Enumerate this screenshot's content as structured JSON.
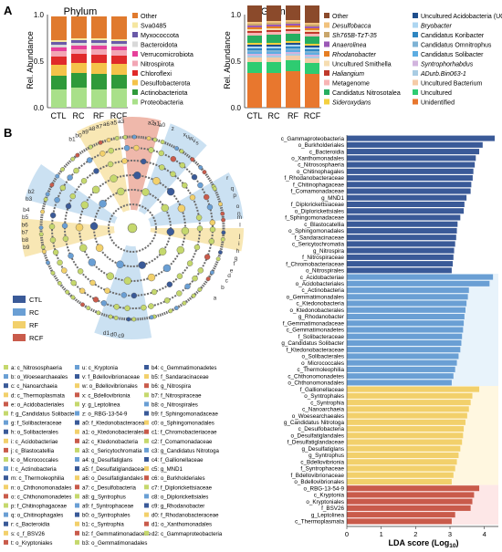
{
  "panel_labels": {
    "a": "A",
    "b": "B"
  },
  "phylum": {
    "title": "Phylum",
    "ylabel": "Rel. Abundance",
    "yticks": [
      "0.0",
      "0.5",
      "1.0"
    ],
    "categories": [
      "CTL",
      "RC",
      "RF",
      "RCF"
    ],
    "legend": [
      {
        "name": "Other",
        "color": "#e07a2e"
      },
      {
        "name": "Sva0485",
        "color": "#f5e6a0"
      },
      {
        "name": "Myxococcota",
        "color": "#6a5aa8"
      },
      {
        "name": "Bacteroidota",
        "color": "#d9d9d9"
      },
      {
        "name": "Verrucomicrobiota",
        "color": "#e6409a"
      },
      {
        "name": "Nitrospirota",
        "color": "#f2a6b4"
      },
      {
        "name": "Chloroflexi",
        "color": "#e02a2a"
      },
      {
        "name": "Desulfobacterota",
        "color": "#f4c34a"
      },
      {
        "name": "Actinobacteriota",
        "color": "#2f9a3a"
      },
      {
        "name": "Proteobacteria",
        "color": "#a9e08a"
      }
    ]
  },
  "genus": {
    "title": "Geuns",
    "ylabel": "Rel. Abundance",
    "yticks": [
      "0.0",
      "0.5",
      "1.0"
    ],
    "categories": [
      "CTL",
      "RC",
      "RF",
      "RCF"
    ],
    "legend_left": [
      {
        "name": "Other",
        "color": "#8b4a2b",
        "italic": false
      },
      {
        "name": "Desulfobacca",
        "color": "#f1c27d",
        "italic": true
      },
      {
        "name": "Sh765B-TzT-35",
        "color": "#c9a66b",
        "italic": true
      },
      {
        "name": "Anaerolinea",
        "color": "#9b59b6",
        "italic": true
      },
      {
        "name": "Rhodanobacter",
        "color": "#e67e22",
        "italic": true
      },
      {
        "name": "Uncultured Smithella",
        "color": "#f6ddb0",
        "italic": false
      },
      {
        "name": "Haliangium",
        "color": "#c0392b",
        "italic": true
      },
      {
        "name": "Metagenome",
        "color": "#f8b4b4",
        "italic": false
      },
      {
        "name": "Candidatus Nitrosotalea",
        "color": "#27ae60",
        "italic": false
      },
      {
        "name": "Sideroxydans",
        "color": "#f4d03f",
        "italic": true
      }
    ],
    "legend_right": [
      {
        "name": "Uncultured Acidobacteria (UG)",
        "color": "#1f4e8c",
        "italic": false
      },
      {
        "name": "Bryobacter",
        "color": "#aed6f1",
        "italic": true
      },
      {
        "name": "Candidatus Koribacter",
        "color": "#2e86c1",
        "italic": false
      },
      {
        "name": "Candidatus Omnitrophus",
        "color": "#7fb3d5",
        "italic": false
      },
      {
        "name": "Candidatus Solibacter",
        "color": "#5dade2",
        "italic": false
      },
      {
        "name": "Syntrophorhabdus",
        "color": "#d2b4de",
        "italic": true
      },
      {
        "name": "ADurb.Bin063-1",
        "color": "#a9cce3",
        "italic": true
      },
      {
        "name": "Uncultured Bacterium",
        "color": "#f5cba7",
        "italic": false
      },
      {
        "name": "Uncultured",
        "color": "#2ecc71",
        "italic": false
      },
      {
        "name": "Unidentified",
        "color": "#e8772e",
        "italic": false
      }
    ]
  },
  "lda": {
    "xlabel": "LDA score (Log",
    "xlabel_sub": "10",
    "xlabel_end": ")",
    "xticks": [
      "0",
      "1",
      "2",
      "3",
      "4"
    ]
  },
  "cladogram_legend": [
    {
      "name": "CTL",
      "color": "#3a5a98"
    },
    {
      "name": "RC",
      "color": "#6a9fd4"
    },
    {
      "name": "RF",
      "color": "#f2d06b"
    },
    {
      "name": "RCF",
      "color": "#c95b4b"
    }
  ],
  "clade_keys": {
    "col1": [
      "a: c_Nitrososphaeria",
      "b: o_Woesearchaeales",
      "c: c_Nanoarchaeia",
      "d: c_Thermoplasmata",
      "e: o_Acidobacteriales",
      "f: g_Candidatus Solibacter",
      "g: f_Solibacteraceae",
      "h: o_Solibacterales",
      "i: c_Acidobacteriae",
      "j: c_Blastocatellia",
      "k: o_Micrococcales",
      "l: c_Actinobacteria",
      "m: c_Thermoleophilia",
      "n: o_Chthonomonadales",
      "o: c_Chthonomonadetes",
      "p: f_Chitinophagaceae",
      "q: o_Chitinophagales",
      "r: c_Bacteroidia",
      "s: c_f_BSV26",
      "t: o_Kryptoniales"
    ],
    "col2": [
      "u: c_Kryptonia",
      "v: f_Bdellovibrionaceae",
      "w: o_Bdellovibrionales",
      "x: c_Bdellovibrionia",
      "y: g_Leptolinea",
      "z: o_RBG-13-54-9",
      "a0: f_Ktedonobacteraceae",
      "a1: o_Ktedonobacterales",
      "a2: c_Ktedonobacteria",
      "a3: c_Sericytochromatia",
      "a4: g_Desulfatiglans",
      "a5: f_Desulfatiglandaceae",
      "a6: o_Desulfatiglandales",
      "a7: c_Desulfobacteria",
      "a8: g_Syntrophus",
      "a9: f_Syntrophaceae",
      "b0: o_Syntrophales",
      "b1: c_Syntrophia",
      "b2: f_Gemmatimonadaceae",
      "b3: o_Gemmatimonadales"
    ],
    "col3": [
      "b4: c_Gemmatimonadetes",
      "b5: f_Sandaracinaceae",
      "b6: g_Nitrospira",
      "b7: f_Nitrospiraceae",
      "b8: o_Nitrospirales",
      "b9: f_Sphingomonadaceae",
      "c0: o_Sphingomonadales",
      "c1: f_Chromobacteriaceae",
      "c2: f_Comamonadaceae",
      "c3: g_Candidatus Nitrotoga",
      "c4: f_Gallionellaceae",
      "c5: g_MND1",
      "c6: o_Burkholderiales",
      "c7: f_Diplorickettsiaceae",
      "c8: o_Diplorickettsiales",
      "c9: g_Rhodanobacter",
      "d0: f_Rhodanobacteraceae",
      "d1: o_Xanthomonadales",
      "d2: c_Gammaproteobacteria"
    ]
  },
  "chart_data": [
    {
      "type": "bar",
      "title": "Phylum",
      "ylabel": "Rel. Abundance",
      "ylim": [
        0,
        1
      ],
      "categories": [
        "CTL",
        "RC",
        "RF",
        "RCF"
      ],
      "series": [
        {
          "name": "Proteobacteria",
          "values": [
            0.2,
            0.22,
            0.2,
            0.21
          ]
        },
        {
          "name": "Actinobacteriota",
          "values": [
            0.15,
            0.16,
            0.17,
            0.15
          ]
        },
        {
          "name": "Desulfobacterota",
          "values": [
            0.12,
            0.11,
            0.12,
            0.12
          ]
        },
        {
          "name": "Chloroflexi",
          "values": [
            0.09,
            0.1,
            0.09,
            0.09
          ]
        },
        {
          "name": "Nitrospirota",
          "values": [
            0.06,
            0.05,
            0.06,
            0.06
          ]
        },
        {
          "name": "Verrucomicrobiota",
          "values": [
            0.04,
            0.04,
            0.04,
            0.04
          ]
        },
        {
          "name": "Bacteroidota",
          "values": [
            0.03,
            0.03,
            0.03,
            0.03
          ]
        },
        {
          "name": "Myxococcota",
          "values": [
            0.03,
            0.03,
            0.03,
            0.03
          ]
        },
        {
          "name": "Sva0485",
          "values": [
            0.02,
            0.02,
            0.02,
            0.02
          ]
        },
        {
          "name": "Other",
          "values": [
            0.26,
            0.24,
            0.24,
            0.25
          ]
        }
      ]
    },
    {
      "type": "bar",
      "title": "Geuns",
      "ylabel": "Rel. Abundance",
      "ylim": [
        0,
        1
      ],
      "categories": [
        "CTL",
        "RC",
        "RF",
        "RCF"
      ],
      "series": [
        {
          "name": "Unidentified",
          "values": [
            0.38,
            0.38,
            0.4,
            0.37
          ]
        },
        {
          "name": "Uncultured",
          "values": [
            0.12,
            0.12,
            0.12,
            0.12
          ]
        },
        {
          "name": "Uncultured Bacterium",
          "values": [
            0.05,
            0.05,
            0.05,
            0.05
          ]
        },
        {
          "name": "ADurb.Bin063-1",
          "values": [
            0.02,
            0.02,
            0.02,
            0.02
          ]
        },
        {
          "name": "Syntrophorhabdus",
          "values": [
            0.02,
            0.02,
            0.02,
            0.02
          ]
        },
        {
          "name": "Candidatus Solibacter",
          "values": [
            0.02,
            0.02,
            0.02,
            0.02
          ]
        },
        {
          "name": "Candidatus Omnitrophus",
          "values": [
            0.02,
            0.02,
            0.02,
            0.02
          ]
        },
        {
          "name": "Candidatus Koribacter",
          "values": [
            0.02,
            0.02,
            0.02,
            0.02
          ]
        },
        {
          "name": "Bryobacter",
          "values": [
            0.02,
            0.02,
            0.02,
            0.02
          ]
        },
        {
          "name": "Uncultured Acidobacteria (UG)",
          "values": [
            0.02,
            0.02,
            0.02,
            0.02
          ]
        },
        {
          "name": "Sideroxydans",
          "values": [
            0.02,
            0.02,
            0.02,
            0.02
          ]
        },
        {
          "name": "Candidatus Nitrosotalea",
          "values": [
            0.08,
            0.09,
            0.08,
            0.08
          ]
        },
        {
          "name": "Metagenome",
          "values": [
            0.03,
            0.03,
            0.03,
            0.03
          ]
        },
        {
          "name": "Haliangium",
          "values": [
            0.02,
            0.02,
            0.02,
            0.02
          ]
        },
        {
          "name": "Uncultured Smithella",
          "values": [
            0.02,
            0.02,
            0.02,
            0.02
          ]
        },
        {
          "name": "Rhodanobacter",
          "values": [
            0.02,
            0.02,
            0.02,
            0.02
          ]
        },
        {
          "name": "Anaerolinea",
          "values": [
            0.02,
            0.02,
            0.02,
            0.02
          ]
        },
        {
          "name": "Sh765B-TzT-35",
          "values": [
            0.02,
            0.02,
            0.02,
            0.02
          ]
        },
        {
          "name": "Desulfobacca",
          "values": [
            0.02,
            0.02,
            0.02,
            0.02
          ]
        },
        {
          "name": "Other",
          "values": [
            0.18,
            0.17,
            0.16,
            0.19
          ]
        }
      ]
    },
    {
      "type": "bar",
      "orientation": "horizontal",
      "xlabel": "LDA score (Log10)",
      "xlim": [
        0,
        4.3
      ],
      "categories": [
        "c_Gammaproteobacteria",
        "o_Burkholderiales",
        "c_Bacteroidia",
        "o_Xanthomonadales",
        "c_Nitrososphaeria",
        "o_Chitinophagales",
        "f_Rhodanobacteraceae",
        "f_Chitinophagaceae",
        "f_Comamonadaceae",
        "g_MND1",
        "f_Diplorickettsiaceae",
        "o_Diplorickettsiales",
        "f_Sphingomonadaceae",
        "c_Blastocatellia",
        "o_Sphingomonadales",
        "f_Sandaracinaceae",
        "c_Sericytochromatia",
        "g_Nitrospira",
        "f_Nitrospiraceae",
        "f_Chromobacteriaceae",
        "o_Nitrospirales",
        "c_Acidobacteriae",
        "o_Acidobacteriales",
        "c_Actinobacteria",
        "o_Gemmatimonadales",
        "c_Ktedonobacteria",
        "o_Ktedonobacterales",
        "g_Rhodanobacter",
        "f_Gemmatimonadaceae",
        "c_Gemmatimonadetes",
        "f_Solibacteraceae",
        "g_Candidatus Solibacter",
        "f_Ktedonobacteraceae",
        "o_Solibacterales",
        "o_Micrococcales",
        "c_Thermoleophilia",
        "c_Chthonomonadetes",
        "o_Chthonomonadales",
        "f_Gallionellaceae",
        "o_Syntrophales",
        "c_Syntrophia",
        "c_Nanoarchaeia",
        "o_Woesearchaeales",
        "g_Candidatus Nitrotoga",
        "c_Desulfobacteria",
        "o_Desulfatiglandales",
        "f_Desulfatiglandaceae",
        "g_Desulfatiglans",
        "g_Syntrophus",
        "c_Bdellovibrionia",
        "f_Syntrophaceae",
        "f_Bdellovibrionaceae",
        "o_Bdellovibrionales",
        "o_RBG-13-54-9",
        "c_Kryptonia",
        "o_Kryptoniales",
        "f_BSV26",
        "g_Leptolinea",
        "c_Thermoplasmata"
      ],
      "groups": [
        "CTL",
        "CTL",
        "CTL",
        "CTL",
        "CTL",
        "CTL",
        "CTL",
        "CTL",
        "CTL",
        "CTL",
        "CTL",
        "CTL",
        "CTL",
        "CTL",
        "CTL",
        "CTL",
        "CTL",
        "CTL",
        "CTL",
        "CTL",
        "CTL",
        "RC",
        "RC",
        "RC",
        "RC",
        "RC",
        "RC",
        "RC",
        "RC",
        "RC",
        "RC",
        "RC",
        "RC",
        "RC",
        "RC",
        "RC",
        "RC",
        "RC",
        "RF",
        "RF",
        "RF",
        "RF",
        "RF",
        "RF",
        "RF",
        "RF",
        "RF",
        "RF",
        "RF",
        "RF",
        "RF",
        "RF",
        "RF",
        "RCF",
        "RCF",
        "RCF",
        "RCF",
        "RCF",
        "RCF"
      ],
      "values": [
        4.3,
        3.95,
        3.85,
        3.75,
        3.72,
        3.68,
        3.66,
        3.62,
        3.6,
        3.48,
        3.42,
        3.4,
        3.3,
        3.22,
        3.2,
        3.18,
        3.15,
        3.12,
        3.1,
        3.08,
        3.05,
        4.25,
        4.15,
        3.55,
        3.52,
        3.48,
        3.45,
        3.42,
        3.4,
        3.38,
        3.35,
        3.33,
        3.3,
        3.25,
        3.2,
        3.15,
        3.1,
        3.05,
        3.85,
        3.65,
        3.6,
        3.55,
        3.5,
        3.45,
        3.4,
        3.38,
        3.35,
        3.3,
        3.25,
        3.2,
        3.15,
        3.1,
        3.05,
        3.85,
        3.7,
        3.65,
        3.6,
        3.15,
        3.05
      ]
    }
  ]
}
